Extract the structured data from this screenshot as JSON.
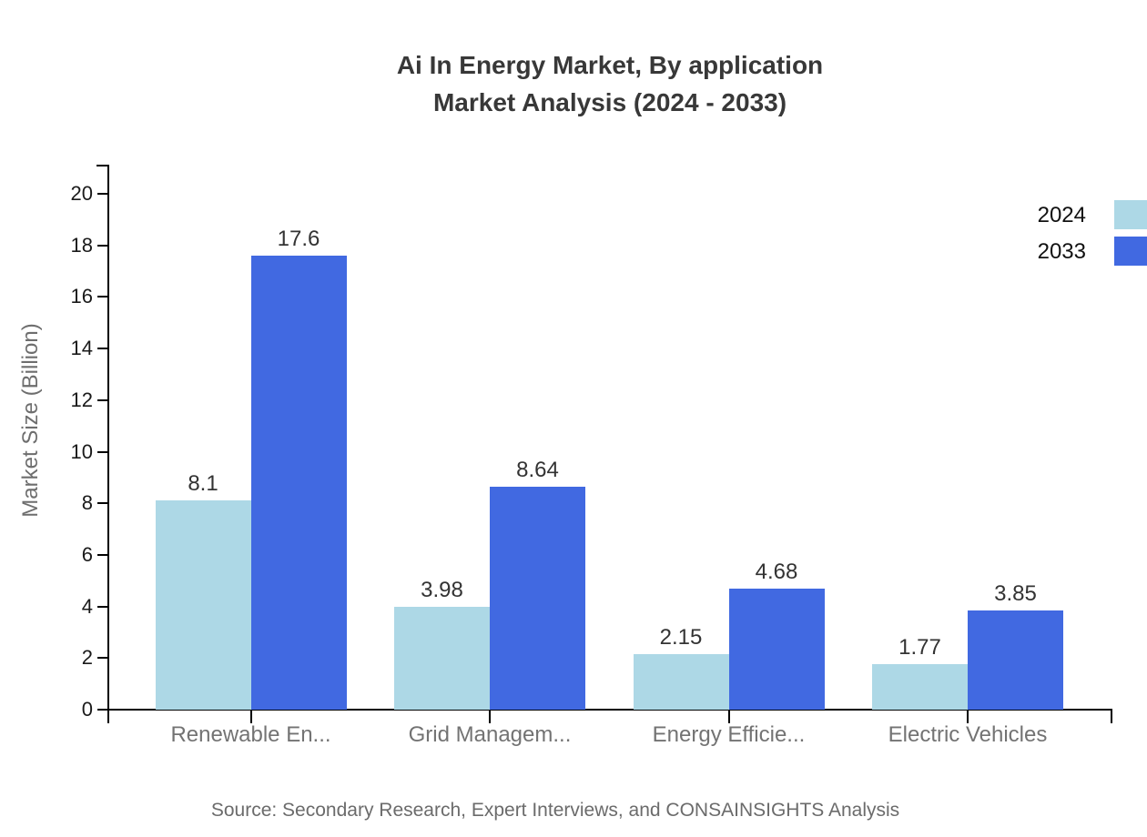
{
  "title": {
    "line1": "Ai In Energy Market, By application",
    "line2": "Market Analysis (2024 - 2033)"
  },
  "source_note": "Source: Secondary Research, Expert Interviews, and CONSAINSIGHTS Analysis",
  "colors": {
    "series_2024": "#ADD8E6",
    "series_2033": "#4169E1",
    "axis": "#000000",
    "title_text": "#383838",
    "category_text": "#737373",
    "value_label_text": "#333333",
    "tick_label_text": "#1a1a1a",
    "axis_title_text": "#6e6e6e",
    "source_text": "#6b6b6b",
    "background": "#ffffff"
  },
  "chart_data": {
    "type": "bar",
    "title": "Ai In Energy Market, By application Market Analysis (2024 - 2033)",
    "categories": [
      "Renewable En...",
      "Grid Managem...",
      "Energy Efficie...",
      "Electric Vehicles"
    ],
    "series": [
      {
        "name": "2024",
        "color": "#ADD8E6",
        "values": [
          8.1,
          3.98,
          2.15,
          1.77
        ]
      },
      {
        "name": "2033",
        "color": "#4169E1",
        "values": [
          17.6,
          8.64,
          4.68,
          3.85
        ]
      }
    ],
    "xlabel": "",
    "ylabel": "Market Size (Billion)",
    "ylim": [
      0,
      20
    ],
    "ytick_step": 2,
    "grid": false,
    "legend_position": "top-right-outside",
    "value_labels_shown": true
  }
}
